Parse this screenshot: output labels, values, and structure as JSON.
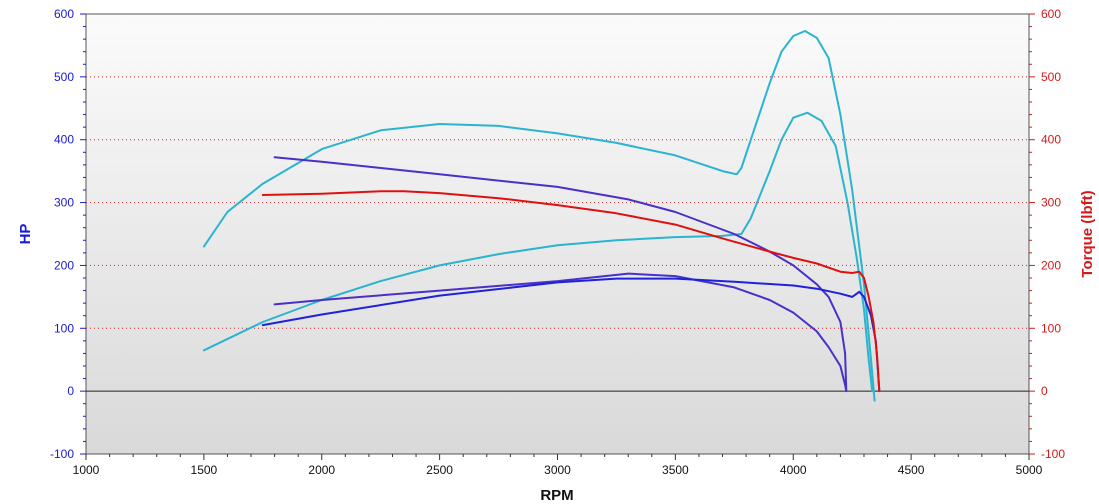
{
  "chart_data": {
    "type": "line",
    "title": "",
    "xlabel": "RPM",
    "ylabel_left": "HP",
    "ylabel_right": "Torque (lbft)",
    "xlim": [
      1000,
      5000
    ],
    "ylim_left": [
      -100,
      600
    ],
    "ylim_right": [
      -100,
      600
    ],
    "x_ticks": [
      1000,
      1500,
      2000,
      2500,
      3000,
      3500,
      4000,
      4500,
      5000
    ],
    "y_ticks_left": [
      -100,
      0,
      100,
      200,
      300,
      400,
      500,
      600
    ],
    "y_ticks_right": [
      -100,
      0,
      100,
      200,
      300,
      400,
      500,
      600
    ],
    "grid": {
      "horizontal": "dotted",
      "vertical": false
    },
    "legend": "none",
    "colors": {
      "left_axis": "#1a1ad6",
      "right_axis": "#d61a1a",
      "series_cyan": "#2ab4cf",
      "series_blue": "#1e22d8",
      "series_purple": "#4a30c8",
      "series_red": "#e01010",
      "grid": "#c03030",
      "plot_top": "#fafafa",
      "plot_bottom": "#d8d8d8"
    },
    "series": [
      {
        "color": "#2ab4cf",
        "values": [
          [
            1500,
            230
          ],
          [
            1600,
            285
          ],
          [
            1750,
            330
          ],
          [
            2000,
            385
          ],
          [
            2250,
            415
          ],
          [
            2500,
            425
          ],
          [
            2750,
            422
          ],
          [
            3000,
            410
          ],
          [
            3250,
            395
          ],
          [
            3500,
            375
          ],
          [
            3700,
            350
          ],
          [
            3760,
            345
          ],
          [
            3780,
            355
          ],
          [
            3820,
            400
          ],
          [
            3900,
            490
          ],
          [
            3950,
            540
          ],
          [
            4000,
            565
          ],
          [
            4050,
            573
          ],
          [
            4100,
            562
          ],
          [
            4150,
            530
          ],
          [
            4200,
            440
          ],
          [
            4250,
            320
          ],
          [
            4300,
            170
          ],
          [
            4330,
            50
          ],
          [
            4345,
            -15
          ]
        ]
      },
      {
        "color": "#2ab4cf",
        "values": [
          [
            1500,
            65
          ],
          [
            1750,
            110
          ],
          [
            2000,
            145
          ],
          [
            2250,
            175
          ],
          [
            2500,
            200
          ],
          [
            2750,
            218
          ],
          [
            3000,
            232
          ],
          [
            3250,
            240
          ],
          [
            3500,
            245
          ],
          [
            3700,
            247
          ],
          [
            3780,
            250
          ],
          [
            3820,
            275
          ],
          [
            3900,
            350
          ],
          [
            3950,
            400
          ],
          [
            4000,
            435
          ],
          [
            4060,
            443
          ],
          [
            4120,
            430
          ],
          [
            4180,
            390
          ],
          [
            4230,
            300
          ],
          [
            4270,
            210
          ],
          [
            4300,
            130
          ],
          [
            4320,
            50
          ],
          [
            4335,
            0
          ]
        ]
      },
      {
        "color": "#4a30c8",
        "values": [
          [
            1800,
            372
          ],
          [
            2000,
            365
          ],
          [
            2500,
            345
          ],
          [
            3000,
            325
          ],
          [
            3300,
            305
          ],
          [
            3500,
            285
          ],
          [
            3750,
            250
          ],
          [
            3900,
            222
          ],
          [
            4000,
            200
          ],
          [
            4100,
            170
          ],
          [
            4150,
            150
          ],
          [
            4200,
            110
          ],
          [
            4220,
            60
          ],
          [
            4225,
            0
          ]
        ]
      },
      {
        "color": "#4a30c8",
        "values": [
          [
            1800,
            138
          ],
          [
            2000,
            145
          ],
          [
            2500,
            160
          ],
          [
            3000,
            175
          ],
          [
            3300,
            187
          ],
          [
            3500,
            183
          ],
          [
            3750,
            165
          ],
          [
            3900,
            145
          ],
          [
            4000,
            125
          ],
          [
            4100,
            95
          ],
          [
            4150,
            70
          ],
          [
            4200,
            40
          ],
          [
            4220,
            10
          ],
          [
            4225,
            0
          ]
        ]
      },
      {
        "color": "#1e22d8",
        "values": [
          [
            1750,
            105
          ],
          [
            2000,
            122
          ],
          [
            2500,
            152
          ],
          [
            3000,
            173
          ],
          [
            3250,
            179
          ],
          [
            3500,
            179
          ],
          [
            3750,
            174
          ],
          [
            4000,
            168
          ],
          [
            4100,
            163
          ],
          [
            4200,
            155
          ],
          [
            4250,
            150
          ],
          [
            4280,
            158
          ],
          [
            4300,
            150
          ],
          [
            4330,
            120
          ],
          [
            4350,
            80
          ],
          [
            4360,
            30
          ],
          [
            4365,
            0
          ]
        ]
      },
      {
        "color": "#e01010",
        "values": [
          [
            1750,
            312
          ],
          [
            2000,
            314
          ],
          [
            2250,
            318
          ],
          [
            2350,
            318
          ],
          [
            2500,
            315
          ],
          [
            2750,
            307
          ],
          [
            3000,
            296
          ],
          [
            3250,
            283
          ],
          [
            3500,
            265
          ],
          [
            3700,
            243
          ],
          [
            3900,
            222
          ],
          [
            4000,
            212
          ],
          [
            4100,
            203
          ],
          [
            4200,
            190
          ],
          [
            4250,
            188
          ],
          [
            4280,
            190
          ],
          [
            4300,
            180
          ],
          [
            4320,
            150
          ],
          [
            4340,
            110
          ],
          [
            4355,
            60
          ],
          [
            4365,
            0
          ]
        ]
      }
    ]
  }
}
